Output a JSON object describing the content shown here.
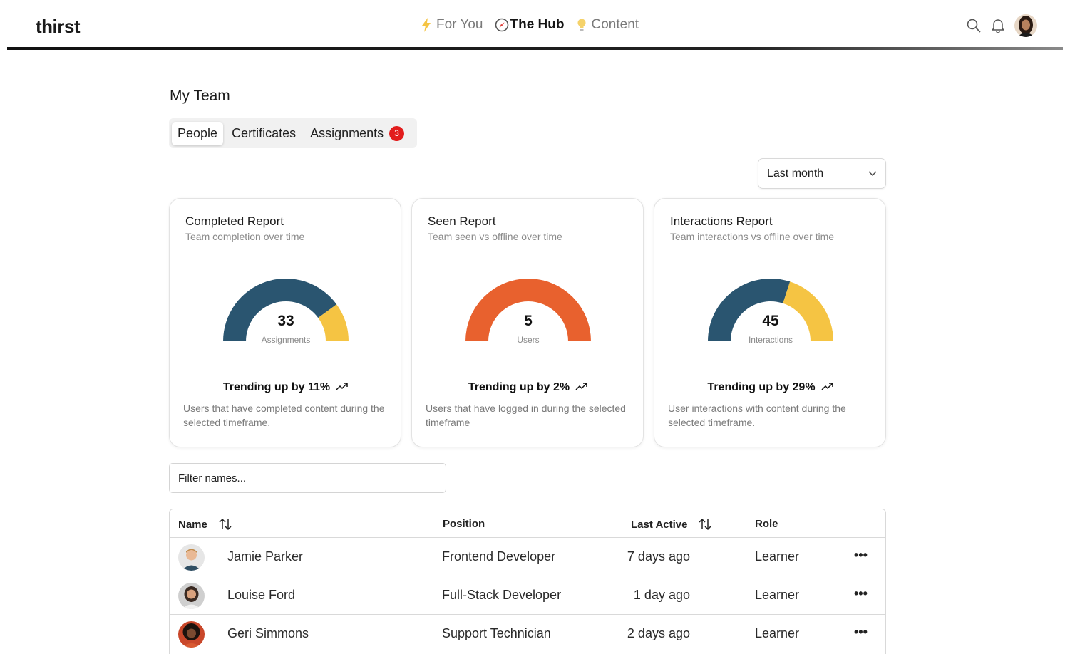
{
  "header": {
    "logo": "thirst",
    "nav": [
      {
        "label": "For You",
        "icon": "lightning-icon",
        "active": false
      },
      {
        "label": "The Hub",
        "icon": "compass-icon",
        "active": true
      },
      {
        "label": "Content",
        "icon": "lightbulb-icon",
        "active": false
      }
    ],
    "actions": [
      "search-icon",
      "bell-icon",
      "user-avatar"
    ]
  },
  "page": {
    "title": "My Team",
    "tabs": [
      {
        "label": "People",
        "active": true
      },
      {
        "label": "Certificates",
        "active": false
      },
      {
        "label": "Assignments",
        "active": false,
        "badge": "3"
      }
    ],
    "period_select": {
      "value": "Last month"
    }
  },
  "cards": [
    {
      "title": "Completed Report",
      "subtitle": "Team completion over time",
      "value": "33",
      "unit": "Assignments",
      "trend": "Trending up by 11%",
      "description": "Users that have completed content during the selected timeframe.",
      "gauge": [
        {
          "fraction": 0.8,
          "color": "#2a5570"
        },
        {
          "fraction": 0.2,
          "color": "#f5c443"
        }
      ]
    },
    {
      "title": "Seen Report",
      "subtitle": "Team seen vs offline over time",
      "value": "5",
      "unit": "Users",
      "trend": "Trending up by 2%",
      "description": "Users that have logged in during the selected timeframe",
      "gauge": [
        {
          "fraction": 1.0,
          "color": "#e8612e"
        }
      ]
    },
    {
      "title": "Interactions Report",
      "subtitle": "Team interactions vs offline over time",
      "value": "45",
      "unit": "Interactions",
      "trend": "Trending up by 29%",
      "description": "User interactions with content during the selected timeframe.",
      "gauge": [
        {
          "fraction": 0.6,
          "color": "#2a5570"
        },
        {
          "fraction": 0.4,
          "color": "#f5c443"
        }
      ]
    }
  ],
  "filter": {
    "placeholder": "Filter names..."
  },
  "table": {
    "headers": {
      "name": "Name",
      "position": "Position",
      "last_active": "Last Active",
      "role": "Role"
    },
    "rows": [
      {
        "name": "Jamie Parker",
        "position": "Frontend Developer",
        "last_active": "7 days ago",
        "role": "Learner"
      },
      {
        "name": "Louise Ford",
        "position": "Full-Stack Developer",
        "last_active": "1 day ago",
        "role": "Learner"
      },
      {
        "name": "Geri Simmons",
        "position": "Support Technician",
        "last_active": "2 days ago",
        "role": "Learner"
      }
    ]
  }
}
